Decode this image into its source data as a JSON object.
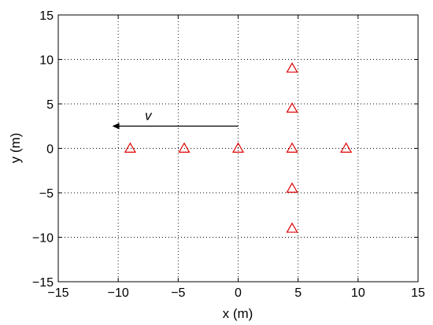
{
  "chart_data": {
    "type": "scatter",
    "title": "",
    "xlabel": "x (m)",
    "ylabel": "y (m)",
    "xlim": [
      -15,
      15
    ],
    "ylim": [
      -15,
      15
    ],
    "xticks": [
      -15,
      -10,
      -5,
      0,
      5,
      10,
      15
    ],
    "yticks": [
      -15,
      -10,
      -5,
      0,
      5,
      10,
      15
    ],
    "xtick_labels": [
      "−15",
      "−10",
      "−5",
      "0",
      "5",
      "10",
      "15"
    ],
    "ytick_labels": [
      "−15",
      "−10",
      "−5",
      "0",
      "5",
      "10",
      "15"
    ],
    "grid": true,
    "grid_style": "dotted",
    "series": [
      {
        "marker": "triangle",
        "color": "#e00000",
        "points": [
          {
            "x": -9,
            "y": 0
          },
          {
            "x": -4.5,
            "y": 0
          },
          {
            "x": 0,
            "y": 0
          },
          {
            "x": 4.5,
            "y": 0
          },
          {
            "x": 9,
            "y": 0
          },
          {
            "x": 4.5,
            "y": 9
          },
          {
            "x": 4.5,
            "y": 4.5
          },
          {
            "x": 4.5,
            "y": -4.5
          },
          {
            "x": 4.5,
            "y": -9
          }
        ]
      }
    ],
    "annotations": [
      {
        "type": "arrow",
        "label": "v",
        "from": {
          "x": 0,
          "y": 2.5
        },
        "to": {
          "x": -10.5,
          "y": 2.5
        },
        "label_at": {
          "x": -7.5,
          "y": 3.7
        },
        "color": "#000000"
      }
    ]
  }
}
